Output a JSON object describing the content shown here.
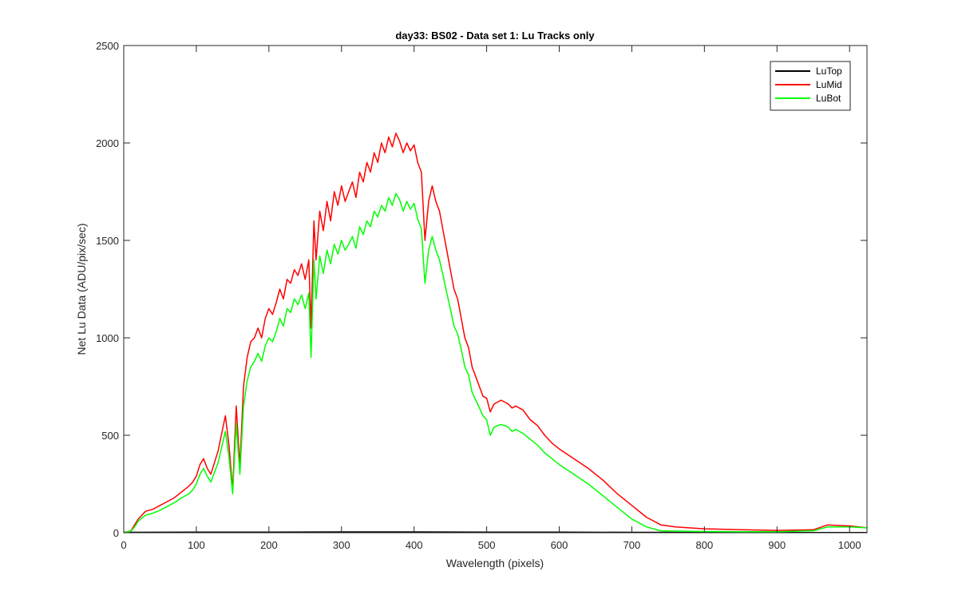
{
  "chart_data": {
    "type": "line",
    "title": "day33: BS02 - Data set 1: Lu Tracks only",
    "xlabel": "Wavelength (pixels)",
    "ylabel": "Net Lu Data (ADU/pix/sec)",
    "xlim": [
      0,
      1024
    ],
    "ylim": [
      0,
      2500
    ],
    "xticks": [
      0,
      100,
      200,
      300,
      400,
      500,
      600,
      700,
      800,
      900,
      1000
    ],
    "yticks": [
      0,
      500,
      1000,
      1500,
      2000,
      2500
    ],
    "grid": false,
    "legend_position": "top-right",
    "series": [
      {
        "name": "LuTop",
        "color": "#000000",
        "x": [
          0,
          100,
          200,
          300,
          400,
          500,
          600,
          700,
          800,
          900,
          1000,
          1024
        ],
        "y": [
          2,
          3,
          3,
          4,
          4,
          3,
          3,
          2,
          2,
          1,
          1,
          1
        ]
      },
      {
        "name": "LuMid",
        "color": "#ff0000",
        "x": [
          0,
          10,
          15,
          20,
          30,
          40,
          50,
          60,
          70,
          80,
          90,
          95,
          100,
          105,
          110,
          115,
          120,
          130,
          140,
          145,
          150,
          155,
          160,
          165,
          170,
          175,
          180,
          185,
          190,
          195,
          200,
          205,
          210,
          215,
          220,
          225,
          230,
          235,
          240,
          245,
          250,
          255,
          258,
          262,
          265,
          270,
          275,
          280,
          285,
          290,
          295,
          300,
          305,
          310,
          315,
          320,
          325,
          330,
          335,
          340,
          345,
          350,
          355,
          360,
          365,
          370,
          375,
          380,
          385,
          390,
          395,
          400,
          405,
          410,
          415,
          420,
          425,
          430,
          435,
          440,
          445,
          450,
          455,
          460,
          465,
          470,
          475,
          480,
          485,
          490,
          495,
          500,
          505,
          510,
          515,
          520,
          525,
          530,
          535,
          540,
          545,
          550,
          560,
          570,
          580,
          590,
          600,
          620,
          640,
          660,
          680,
          700,
          720,
          740,
          760,
          800,
          850,
          900,
          950,
          970,
          1000,
          1024
        ],
        "y": [
          0,
          10,
          40,
          70,
          110,
          120,
          140,
          160,
          180,
          210,
          240,
          260,
          290,
          350,
          380,
          330,
          300,
          420,
          600,
          450,
          220,
          650,
          340,
          750,
          900,
          980,
          1000,
          1050,
          1000,
          1100,
          1150,
          1120,
          1180,
          1250,
          1200,
          1300,
          1280,
          1350,
          1320,
          1380,
          1300,
          1400,
          1050,
          1600,
          1400,
          1650,
          1550,
          1700,
          1600,
          1750,
          1680,
          1780,
          1700,
          1750,
          1800,
          1720,
          1850,
          1800,
          1900,
          1850,
          1950,
          1900,
          2000,
          1950,
          2030,
          1980,
          2050,
          2010,
          1950,
          2000,
          1960,
          1990,
          1900,
          1850,
          1500,
          1700,
          1780,
          1700,
          1650,
          1550,
          1450,
          1350,
          1250,
          1200,
          1100,
          1000,
          950,
          850,
          800,
          750,
          700,
          690,
          620,
          660,
          670,
          680,
          670,
          660,
          640,
          650,
          640,
          630,
          580,
          550,
          500,
          460,
          430,
          380,
          330,
          270,
          200,
          140,
          80,
          40,
          30,
          20,
          15,
          12,
          15,
          40,
          35,
          25
        ]
      },
      {
        "name": "LuBot",
        "color": "#00ff00",
        "x": [
          0,
          10,
          15,
          20,
          30,
          40,
          50,
          60,
          70,
          80,
          90,
          95,
          100,
          105,
          110,
          115,
          120,
          130,
          140,
          145,
          150,
          155,
          160,
          165,
          170,
          175,
          180,
          185,
          190,
          195,
          200,
          205,
          210,
          215,
          220,
          225,
          230,
          235,
          240,
          245,
          250,
          255,
          258,
          262,
          265,
          270,
          275,
          280,
          285,
          290,
          295,
          300,
          305,
          310,
          315,
          320,
          325,
          330,
          335,
          340,
          345,
          350,
          355,
          360,
          365,
          370,
          375,
          380,
          385,
          390,
          395,
          400,
          405,
          410,
          415,
          420,
          425,
          430,
          435,
          440,
          445,
          450,
          455,
          460,
          465,
          470,
          475,
          480,
          485,
          490,
          495,
          500,
          505,
          510,
          515,
          520,
          525,
          530,
          535,
          540,
          545,
          550,
          560,
          570,
          580,
          590,
          600,
          620,
          640,
          660,
          680,
          700,
          720,
          740,
          760,
          800,
          850,
          900,
          950,
          970,
          1000,
          1024
        ],
        "y": [
          0,
          8,
          30,
          60,
          90,
          100,
          115,
          135,
          155,
          180,
          200,
          220,
          250,
          300,
          330,
          290,
          260,
          360,
          520,
          390,
          200,
          560,
          300,
          650,
          780,
          850,
          880,
          920,
          880,
          960,
          1000,
          980,
          1030,
          1100,
          1060,
          1150,
          1130,
          1200,
          1170,
          1220,
          1150,
          1230,
          900,
          1400,
          1200,
          1420,
          1330,
          1450,
          1380,
          1480,
          1430,
          1500,
          1450,
          1480,
          1520,
          1460,
          1570,
          1530,
          1600,
          1570,
          1650,
          1620,
          1680,
          1650,
          1720,
          1680,
          1740,
          1710,
          1650,
          1700,
          1660,
          1690,
          1610,
          1560,
          1280,
          1450,
          1520,
          1450,
          1400,
          1320,
          1230,
          1150,
          1060,
          1020,
          940,
          850,
          810,
          720,
          680,
          640,
          600,
          580,
          500,
          540,
          550,
          555,
          550,
          540,
          520,
          530,
          520,
          510,
          480,
          450,
          410,
          380,
          350,
          300,
          250,
          190,
          130,
          70,
          30,
          10,
          8,
          6,
          5,
          5,
          10,
          30,
          30,
          25
        ]
      }
    ]
  }
}
